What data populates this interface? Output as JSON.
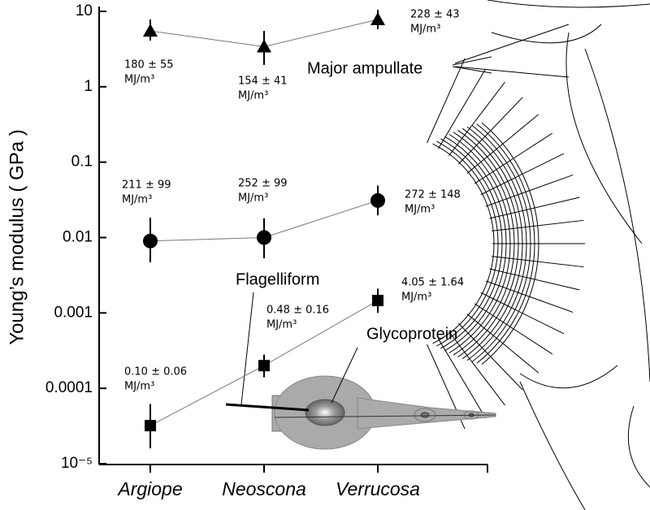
{
  "chart_data": {
    "type": "scatter",
    "y_label": "Young’s modulus ( GPa )",
    "log_y": true,
    "ylim": [
      1e-05,
      10
    ],
    "yticks": [
      10,
      1,
      0.1,
      0.01,
      0.001,
      0.0001,
      {
        "value": 1e-05,
        "label": "10⁻⁵"
      }
    ],
    "categories": [
      "Argiope",
      "Neoscona",
      "Verrucosa"
    ],
    "annotation_unit": "MJ/m³",
    "series": [
      {
        "name": "Major ampullate",
        "color": "#000000",
        "marker": "triangle",
        "values": [
          5.5,
          3.4,
          7.8
        ],
        "lower": [
          4.1,
          1.95,
          5.8
        ],
        "upper": [
          7.8,
          5.5,
          10.5
        ],
        "annotations": [
          "180 ± 55",
          "154 ± 41",
          "228 ± 43"
        ]
      },
      {
        "name": "Flagelliform",
        "color": "#000000",
        "marker": "circle",
        "values": [
          0.009,
          0.01,
          0.031
        ],
        "lower": [
          0.0047,
          0.0053,
          0.0197
        ],
        "upper": [
          0.0183,
          0.018,
          0.049
        ],
        "annotations": [
          "211 ± 99",
          "252 ± 99",
          "272 ± 148"
        ]
      },
      {
        "name": "Glycoprotein",
        "color": "#000000",
        "marker": "square",
        "values": [
          3.2e-05,
          0.0002,
          0.00146
        ],
        "lower": [
          1.6e-05,
          0.00014,
          0.001
        ],
        "upper": [
          6.2e-05,
          0.00028,
          0.0021
        ],
        "annotations": [
          "0.10 ± 0.06",
          "0.48 ± 0.16",
          "4.05 ± 1.64"
        ]
      }
    ]
  }
}
